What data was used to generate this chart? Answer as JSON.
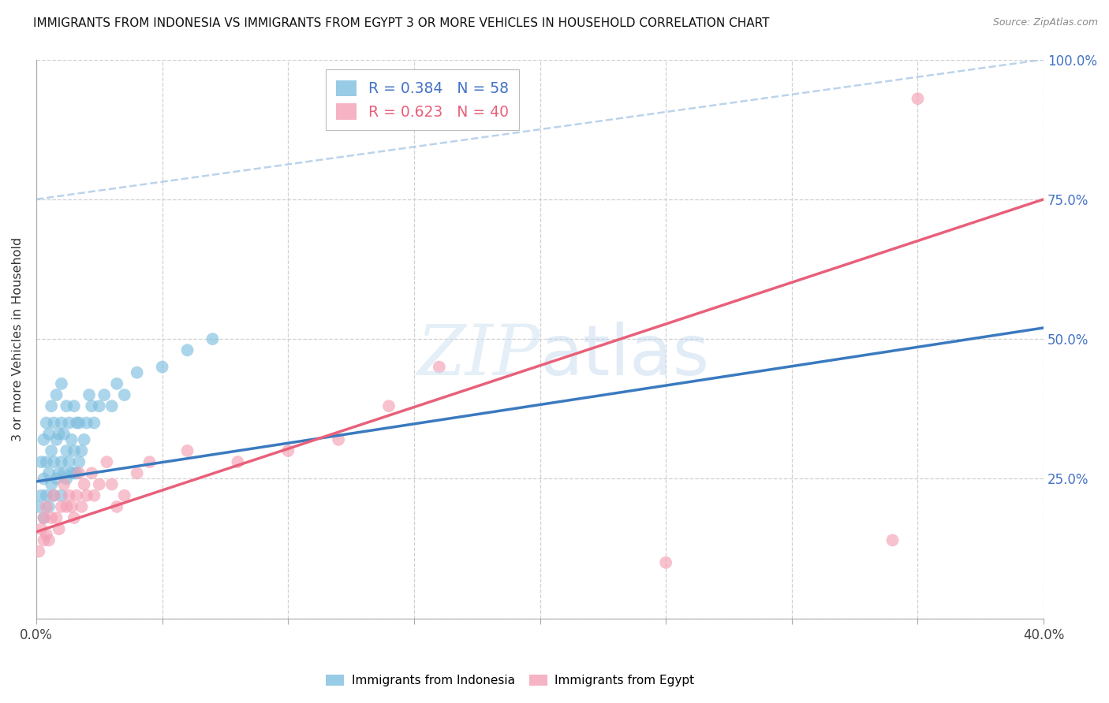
{
  "title": "IMMIGRANTS FROM INDONESIA VS IMMIGRANTS FROM EGYPT 3 OR MORE VEHICLES IN HOUSEHOLD CORRELATION CHART",
  "source": "Source: ZipAtlas.com",
  "ylabel": "3 or more Vehicles in Household",
  "color_indonesia": "#7fbfdf",
  "color_egypt": "#f4a0b5",
  "line_color_indonesia": "#3a7abf",
  "line_color_egypt": "#e8607a",
  "dashed_color": "#b0cce8",
  "R_indonesia": 0.384,
  "N_indonesia": 58,
  "R_egypt": 0.623,
  "N_egypt": 40,
  "legend_indonesia": "Immigrants from Indonesia",
  "legend_egypt": "Immigrants from Egypt",
  "xlim": [
    0.0,
    0.4
  ],
  "ylim": [
    0.0,
    1.0
  ],
  "ind_line_x0": 0.0,
  "ind_line_y0": 0.245,
  "ind_line_x1": 0.4,
  "ind_line_y1": 0.52,
  "egy_line_x0": 0.0,
  "egy_line_y0": 0.155,
  "egy_line_x1": 0.4,
  "egy_line_y1": 0.75,
  "dash_line_x0": 0.0,
  "dash_line_y0": 0.75,
  "dash_line_x1": 0.4,
  "dash_line_y1": 1.0,
  "indonesia_x": [
    0.001,
    0.002,
    0.002,
    0.003,
    0.003,
    0.003,
    0.004,
    0.004,
    0.004,
    0.005,
    0.005,
    0.005,
    0.006,
    0.006,
    0.006,
    0.007,
    0.007,
    0.007,
    0.008,
    0.008,
    0.008,
    0.009,
    0.009,
    0.01,
    0.01,
    0.01,
    0.01,
    0.011,
    0.011,
    0.012,
    0.012,
    0.012,
    0.013,
    0.013,
    0.014,
    0.014,
    0.015,
    0.015,
    0.015,
    0.016,
    0.016,
    0.017,
    0.017,
    0.018,
    0.019,
    0.02,
    0.021,
    0.022,
    0.023,
    0.025,
    0.027,
    0.03,
    0.032,
    0.035,
    0.04,
    0.05,
    0.06,
    0.07
  ],
  "indonesia_y": [
    0.2,
    0.22,
    0.28,
    0.18,
    0.25,
    0.32,
    0.22,
    0.28,
    0.35,
    0.2,
    0.26,
    0.33,
    0.24,
    0.3,
    0.38,
    0.22,
    0.28,
    0.35,
    0.25,
    0.32,
    0.4,
    0.26,
    0.33,
    0.22,
    0.28,
    0.35,
    0.42,
    0.26,
    0.33,
    0.25,
    0.3,
    0.38,
    0.28,
    0.35,
    0.26,
    0.32,
    0.26,
    0.3,
    0.38,
    0.26,
    0.35,
    0.28,
    0.35,
    0.3,
    0.32,
    0.35,
    0.4,
    0.38,
    0.35,
    0.38,
    0.4,
    0.38,
    0.42,
    0.4,
    0.44,
    0.45,
    0.48,
    0.5
  ],
  "egypt_x": [
    0.001,
    0.002,
    0.003,
    0.003,
    0.004,
    0.004,
    0.005,
    0.006,
    0.007,
    0.008,
    0.009,
    0.01,
    0.011,
    0.012,
    0.013,
    0.014,
    0.015,
    0.016,
    0.017,
    0.018,
    0.019,
    0.02,
    0.022,
    0.023,
    0.025,
    0.028,
    0.03,
    0.032,
    0.035,
    0.04,
    0.045,
    0.06,
    0.08,
    0.1,
    0.12,
    0.14,
    0.16,
    0.25,
    0.34,
    0.35
  ],
  "egypt_y": [
    0.12,
    0.16,
    0.14,
    0.18,
    0.15,
    0.2,
    0.14,
    0.18,
    0.22,
    0.18,
    0.16,
    0.2,
    0.24,
    0.2,
    0.22,
    0.2,
    0.18,
    0.22,
    0.26,
    0.2,
    0.24,
    0.22,
    0.26,
    0.22,
    0.24,
    0.28,
    0.24,
    0.2,
    0.22,
    0.26,
    0.28,
    0.3,
    0.28,
    0.3,
    0.32,
    0.38,
    0.45,
    0.1,
    0.14,
    0.93
  ]
}
